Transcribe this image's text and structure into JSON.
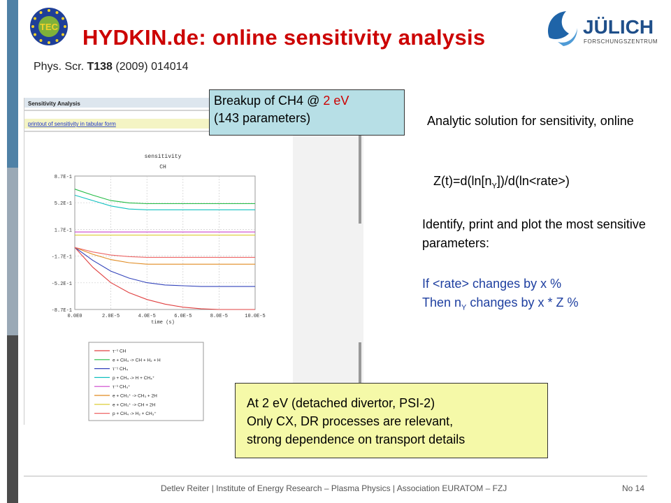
{
  "slide": {
    "title": "HYDKIN.de:  online sensitivity analysis",
    "citation": {
      "prefix": "Phys. Scr. ",
      "volume": "T138",
      "suffix": " (2009) 014014"
    }
  },
  "logos": {
    "tec": "TEC",
    "juelich": {
      "name": "JÜLICH",
      "sub": "FORSCHUNGSZENTRUM"
    }
  },
  "screenshot": {
    "header": "Sensitivity Analysis",
    "link": "printout of sensitivity in tabular form",
    "plot_title": "sensitivity",
    "plot_subtitle": "CH",
    "xlabel": "time (s)",
    "yticks": [
      "8.7E-1",
      "5.2E-1",
      "1.7E-1",
      "-1.7E-1",
      "-5.2E-1",
      "-8.7E-1"
    ],
    "xticks": [
      "0.0E0",
      "2.0E-5",
      "4.0E-5",
      "6.0E-5",
      "8.0E-5",
      "10.0E-5"
    ],
    "legend": [
      {
        "label": "τ⁻¹ CH",
        "color": "#e04040"
      },
      {
        "label": "e + CH₄ -> CH + H₂ + H",
        "color": "#22bb44"
      },
      {
        "label": "τ⁻¹ CH₄",
        "color": "#3344bb"
      },
      {
        "label": "p + CH₄ -> H + CH₄⁺",
        "color": "#10c0c0"
      },
      {
        "label": "τ⁻¹ CH₄⁺",
        "color": "#cc44cc"
      },
      {
        "label": "e + CH₃⁺ -> CH₃ + 2H",
        "color": "#e08a20"
      },
      {
        "label": "e + CH₃⁺ -> CH + 2H",
        "color": "#d8c820"
      },
      {
        "label": "p + CH₄ -> H₂ + CH₃⁺",
        "color": "#ee6666"
      }
    ]
  },
  "chart_data": {
    "type": "line",
    "title": "sensitivity",
    "subtitle": "CH",
    "xlabel": "time (s)",
    "ylabel": "",
    "xlim": [
      0,
      0.0001
    ],
    "ylim": [
      -0.87,
      0.87
    ],
    "x": [
      0,
      1e-05,
      2e-05,
      3e-05,
      4e-05,
      5e-05,
      6e-05,
      7e-05,
      8e-05,
      0.0001
    ],
    "series": [
      {
        "name": "τ⁻¹ CH",
        "color": "#e04040",
        "values": [
          -0.06,
          -0.32,
          -0.52,
          -0.65,
          -0.74,
          -0.8,
          -0.84,
          -0.86,
          -0.87,
          -0.87
        ]
      },
      {
        "name": "e + CH₄ -> CH + H₂ + H",
        "color": "#22bb44",
        "values": [
          0.7,
          0.62,
          0.55,
          0.52,
          0.51,
          0.51,
          0.51,
          0.51,
          0.51,
          0.51
        ]
      },
      {
        "name": "τ⁻¹ CH₄",
        "color": "#3344bb",
        "values": [
          -0.06,
          -0.23,
          -0.37,
          -0.46,
          -0.52,
          -0.55,
          -0.56,
          -0.57,
          -0.57,
          -0.57
        ]
      },
      {
        "name": "p + CH₄ -> H + CH₄⁺",
        "color": "#10c0c0",
        "values": [
          0.62,
          0.55,
          0.48,
          0.44,
          0.43,
          0.43,
          0.43,
          0.43,
          0.43,
          0.43
        ]
      },
      {
        "name": "τ⁻¹ CH₄⁺",
        "color": "#cc44cc",
        "values": [
          0.14,
          0.14,
          0.14,
          0.14,
          0.14,
          0.14,
          0.14,
          0.14,
          0.14,
          0.14
        ]
      },
      {
        "name": "e + CH₃⁺ -> CH₃ + 2H",
        "color": "#e08a20",
        "values": [
          -0.06,
          -0.15,
          -0.22,
          -0.26,
          -0.28,
          -0.28,
          -0.28,
          -0.28,
          -0.28,
          -0.28
        ]
      },
      {
        "name": "e + CH₃⁺ -> CH + 2H",
        "color": "#d8c820",
        "values": [
          0.1,
          0.1,
          0.1,
          0.1,
          0.1,
          0.1,
          0.1,
          0.1,
          0.1,
          0.1
        ]
      },
      {
        "name": "p + CH₄ -> H₂ + CH₃⁺",
        "color": "#ee6666",
        "values": [
          -0.06,
          -0.12,
          -0.16,
          -0.18,
          -0.19,
          -0.19,
          -0.19,
          -0.19,
          -0.19,
          -0.19
        ]
      }
    ]
  },
  "callout_top": {
    "line1_prefix": "Breakup of CH4 @ ",
    "line1_highlight": "2 eV",
    "line2": "(143 parameters)"
  },
  "right_text": {
    "analytic": "Analytic solution for sensitivity, online",
    "formula_a": "Z(t)=d(ln[n",
    "formula_sub": "Y",
    "formula_b": "])/d(ln<rate>)",
    "identify": "Identify, print and plot the most sensitive parameters:",
    "if_line": "If <rate> changes by x %",
    "then_a": "Then n",
    "then_sub": "Y",
    "then_b": " changes by x * Z %"
  },
  "note_box": {
    "line1": "At 2 eV (detached divertor, PSI-2)",
    "line2": "Only CX, DR processes are relevant,",
    "line3": "strong dependence on transport details"
  },
  "footer": {
    "text": "Detlev Reiter | Institute of Energy Research – Plasma Physics | Association EURATOM – FZJ",
    "page": "No 14"
  },
  "colors": {
    "title": "#cc0000",
    "accent_blue": "#1e3fa0",
    "callout_bg": "#b7dfe6",
    "note_bg": "#f5f9a8"
  }
}
